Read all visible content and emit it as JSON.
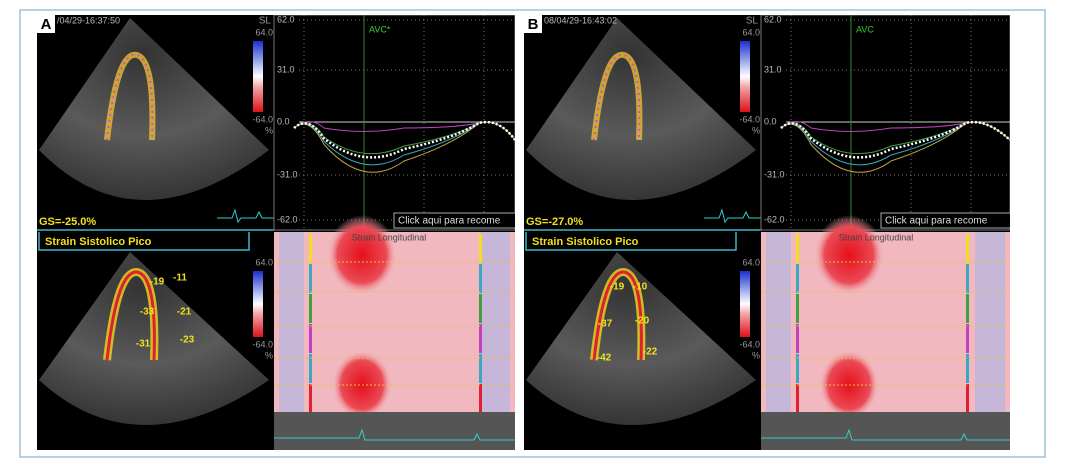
{
  "panels": [
    {
      "label": "A",
      "timestamp": "/04/29-16:37:50",
      "scale_name": "SL",
      "scale_max": "64.0",
      "scale_min": "-64.0",
      "scale_unit": "%",
      "global_strain": "GS=-25.0%",
      "peak_label": "Strain Sistolico Pico",
      "segments": [
        "-19",
        "-11",
        "-33",
        "-21",
        "-31",
        "-23"
      ],
      "graph_ticks": [
        "62.0",
        "31.0",
        "0.0",
        "-31.0",
        "-62.0"
      ],
      "event": "AVC*",
      "button": "Click aqui para recome",
      "map_title": "Strain Longitudinal"
    },
    {
      "label": "B",
      "timestamp": "08/04/29-16:43:02",
      "scale_name": "SL",
      "scale_max": "64.0",
      "scale_min": "-64.0",
      "scale_unit": "%",
      "global_strain": "GS=-27.0%",
      "peak_label": "Strain Sistolico Pico",
      "segments": [
        "-19",
        "-10",
        "-37",
        "-20",
        "-42",
        "-22"
      ],
      "graph_ticks": [
        "62.0",
        "31.0",
        "0.0",
        "-31.0",
        "-62.0"
      ],
      "event": "AVC",
      "button": "Click aqui para recome",
      "map_title": "Strain Longitudinal"
    }
  ]
}
